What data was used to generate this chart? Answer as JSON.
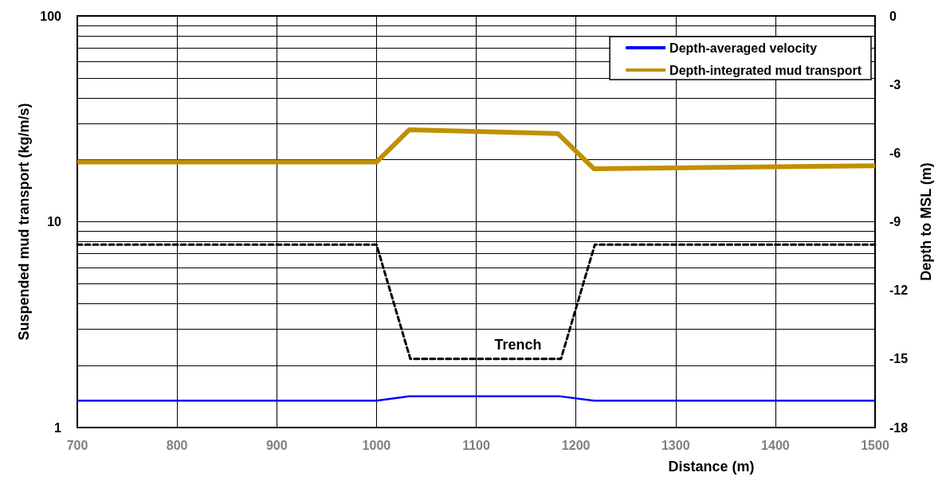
{
  "chart_data": {
    "type": "line",
    "xlabel": "Distance (m)",
    "ylabel": "Suspended mud transport (kg/m/s)",
    "y2label": "Depth to MSL (m)",
    "xlim": [
      700,
      1500
    ],
    "xticks": [
      700,
      800,
      900,
      1000,
      1100,
      1200,
      1300,
      1400,
      1500
    ],
    "ylim": [
      1,
      100
    ],
    "log": "y",
    "yticks": [
      1,
      {
        "value": 2,
        "label": null
      },
      {
        "value": 3,
        "label": null
      },
      {
        "value": 4,
        "label": null
      },
      {
        "value": 5,
        "label": null
      },
      {
        "value": 6,
        "label": null
      },
      {
        "value": 7,
        "label": null
      },
      {
        "value": 8,
        "label": null
      },
      {
        "value": 9,
        "label": null
      },
      10,
      {
        "value": 20,
        "label": null
      },
      {
        "value": 30,
        "label": null
      },
      {
        "value": 40,
        "label": null
      },
      {
        "value": 50,
        "label": null
      },
      {
        "value": 60,
        "label": null
      },
      {
        "value": 70,
        "label": null
      },
      {
        "value": 80,
        "label": null
      },
      {
        "value": 90,
        "label": null
      },
      100
    ],
    "y2lim": [
      -18,
      0
    ],
    "y2ticks": [
      -18,
      -15,
      -12,
      -9,
      -6,
      -3,
      0
    ],
    "grid": true,
    "legend": "top right",
    "marker": "none",
    "series": [
      {
        "name": "Depth-averaged velocity",
        "color": "#0000ff",
        "line_style": "solid",
        "x": [
          700,
          1000,
          1033,
          1183,
          1218,
          1500
        ],
        "values": [
          1.35,
          1.35,
          1.42,
          1.42,
          1.35,
          1.35
        ]
      },
      {
        "name": "Depth-integrated mud transport",
        "color": "#c09000",
        "line_style": "solid",
        "x": [
          700,
          1000,
          1033,
          1182,
          1218,
          1500
        ],
        "values": [
          19.5,
          19.5,
          28.0,
          26.8,
          18.1,
          18.7
        ]
      },
      {
        "color": "#000000",
        "line_style": "dashed",
        "axis": "y2",
        "x": [
          700,
          1000,
          1034,
          1185,
          1219,
          1500
        ],
        "values": [
          -10,
          -10,
          -15,
          -15,
          -10,
          -10
        ]
      }
    ],
    "annotations": [
      "Trench"
    ]
  }
}
